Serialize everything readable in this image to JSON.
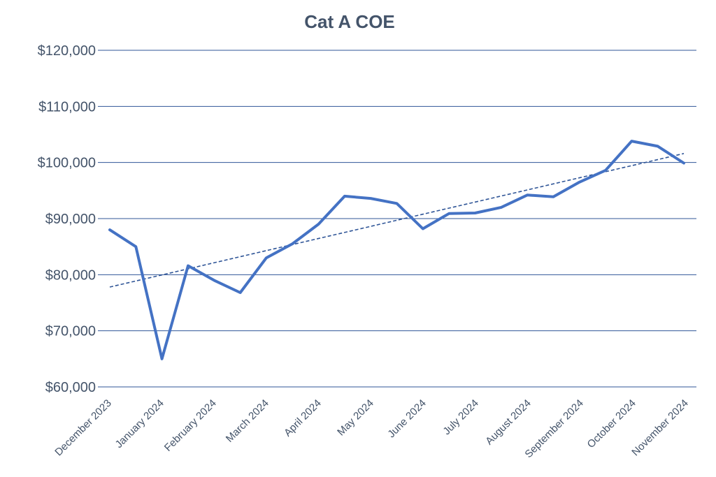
{
  "chart_data": {
    "type": "line",
    "title": "Cat A COE",
    "xlabel": "",
    "ylabel": "",
    "x_tick_labels": [
      "December 2023",
      "January 2024",
      "February 2024",
      "March 2024",
      "April 2024",
      "May 2024",
      "June 2024",
      "July 2024",
      "August 2024",
      "September 2024",
      "October 2024",
      "November 2024"
    ],
    "y_tick_labels": [
      "$60,000",
      "$70,000",
      "$80,000",
      "$90,000",
      "$100,000",
      "$110,000",
      "$120,000"
    ],
    "ylim": [
      60000,
      120000
    ],
    "y_ticks": [
      60000,
      70000,
      80000,
      90000,
      100000,
      110000,
      120000
    ],
    "grid": "horizontal",
    "legend": "none",
    "series": [
      {
        "values": [
          88000,
          85000,
          65000,
          81600,
          79000,
          76800,
          83000,
          85500,
          89000,
          94000,
          93600,
          92700,
          88200,
          90900,
          91000,
          92000,
          94200,
          93900,
          96500,
          98600,
          103800,
          102900,
          99900
        ],
        "color": "#4472c4",
        "style": "solid"
      }
    ],
    "trendline": {
      "type": "linear",
      "start": 77800,
      "end": 101600,
      "color": "#2f5597",
      "style": "dashed"
    }
  }
}
